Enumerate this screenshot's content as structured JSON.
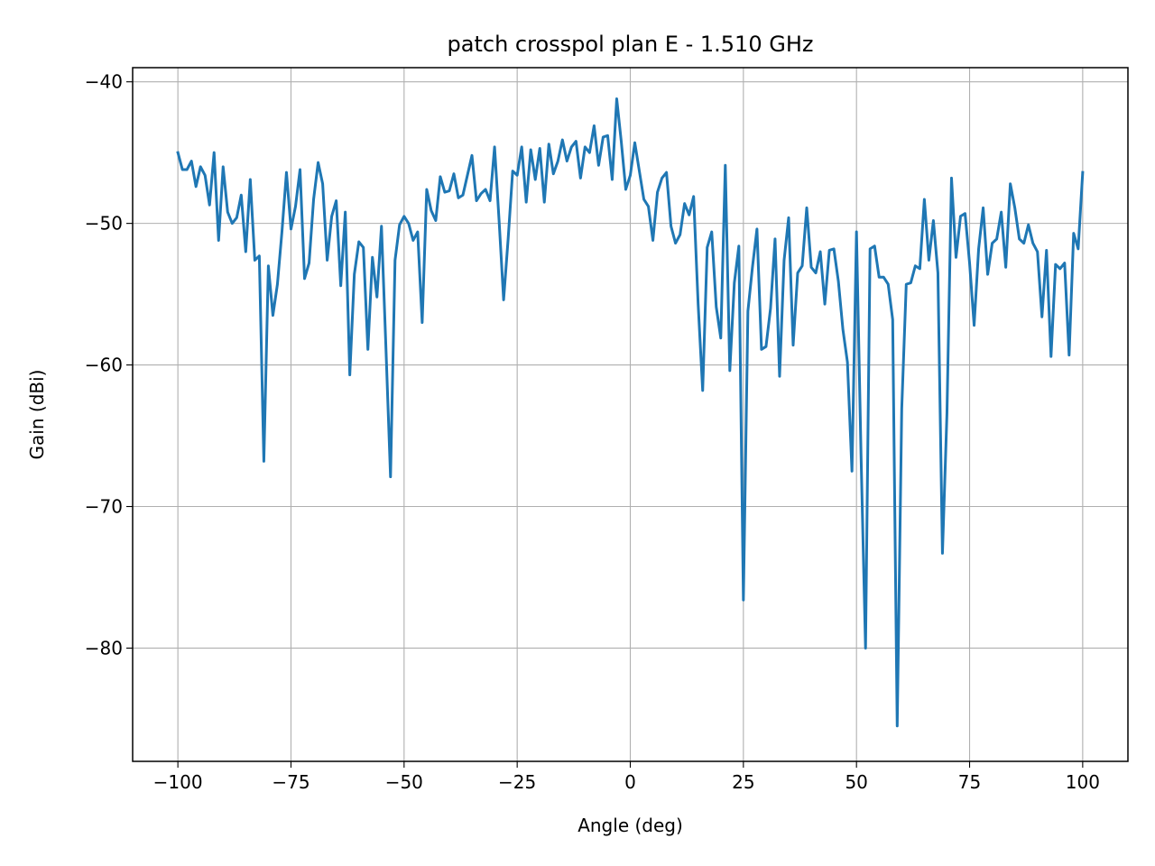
{
  "chart_data": {
    "type": "line",
    "title": "patch crosspol plan E - 1.510 GHz",
    "xlabel": "Angle (deg)",
    "ylabel": "Gain (dBi)",
    "xlim": [
      -110,
      110
    ],
    "ylim": [
      -88,
      -39
    ],
    "xticks": [
      -100,
      -75,
      -50,
      -25,
      0,
      25,
      50,
      75,
      100
    ],
    "xtick_labels": [
      "−100",
      "−75",
      "−50",
      "−25",
      "0",
      "25",
      "50",
      "75",
      "100"
    ],
    "yticks": [
      -40,
      -50,
      -60,
      -70,
      -80
    ],
    "ytick_labels": [
      "−40",
      "−50",
      "−60",
      "−70",
      "−80"
    ],
    "grid": true,
    "series": [
      {
        "color": "#1f77b4",
        "x_start": -100,
        "x_step": 1,
        "values": [
          -45.0,
          -46.2,
          -46.2,
          -45.6,
          -47.4,
          -46.0,
          -46.6,
          -48.7,
          -45.0,
          -51.2,
          -46.0,
          -49.2,
          -50.0,
          -49.6,
          -48.0,
          -52.0,
          -46.9,
          -52.6,
          -52.3,
          -66.8,
          -53.0,
          -56.5,
          -54.3,
          -50.6,
          -46.4,
          -50.4,
          -48.8,
          -46.2,
          -53.9,
          -52.8,
          -48.3,
          -45.7,
          -47.2,
          -52.6,
          -49.5,
          -48.4,
          -54.4,
          -49.2,
          -60.7,
          -53.6,
          -51.3,
          -51.7,
          -58.9,
          -52.4,
          -55.2,
          -50.2,
          -58.9,
          -67.9,
          -52.6,
          -50.1,
          -49.5,
          -50.0,
          -51.2,
          -50.6,
          -57.0,
          -47.6,
          -49.1,
          -49.8,
          -46.7,
          -47.8,
          -47.7,
          -46.5,
          -48.2,
          -48.0,
          -46.6,
          -45.2,
          -48.4,
          -47.9,
          -47.6,
          -48.4,
          -44.6,
          -49.8,
          -55.4,
          -51.1,
          -46.3,
          -46.6,
          -44.6,
          -48.5,
          -44.8,
          -46.9,
          -44.7,
          -48.5,
          -44.4,
          -46.5,
          -45.6,
          -44.1,
          -45.6,
          -44.6,
          -44.2,
          -46.8,
          -44.6,
          -45.0,
          -43.1,
          -45.9,
          -43.9,
          -43.8,
          -46.9,
          -41.2,
          -44.2,
          -47.6,
          -46.6,
          -44.3,
          -46.3,
          -48.3,
          -48.8,
          -51.2,
          -47.8,
          -46.8,
          -46.4,
          -50.2,
          -51.4,
          -50.8,
          -48.6,
          -49.4,
          -48.1,
          -55.7,
          -61.8,
          -51.7,
          -50.6,
          -55.9,
          -58.1,
          -45.9,
          -60.4,
          -54.2,
          -51.6,
          -76.6,
          -56.2,
          -53.1,
          -50.4,
          -58.9,
          -58.7,
          -56.0,
          -51.1,
          -60.8,
          -52.6,
          -49.6,
          -58.6,
          -53.5,
          -53.0,
          -48.9,
          -53.1,
          -53.5,
          -52.0,
          -55.7,
          -51.9,
          -51.8,
          -54.1,
          -57.5,
          -59.8,
          -67.5,
          -50.6,
          -66.3,
          -80.0,
          -51.8,
          -51.6,
          -53.8,
          -53.8,
          -54.3,
          -56.8,
          -85.5,
          -63.1,
          -54.3,
          -54.2,
          -53.0,
          -53.2,
          -48.3,
          -52.6,
          -49.8,
          -53.5,
          -73.3,
          -63.4,
          -46.8,
          -52.4,
          -49.5,
          -49.3,
          -52.8,
          -57.2,
          -51.8,
          -48.9,
          -53.6,
          -51.4,
          -51.1,
          -49.2,
          -53.1,
          -47.2,
          -48.9,
          -51.1,
          -51.4,
          -50.1,
          -51.4,
          -52.0,
          -56.6,
          -51.9,
          -59.4,
          -52.9,
          -53.2,
          -52.8,
          -59.3,
          -50.7,
          -51.8,
          -46.4
        ]
      }
    ]
  }
}
